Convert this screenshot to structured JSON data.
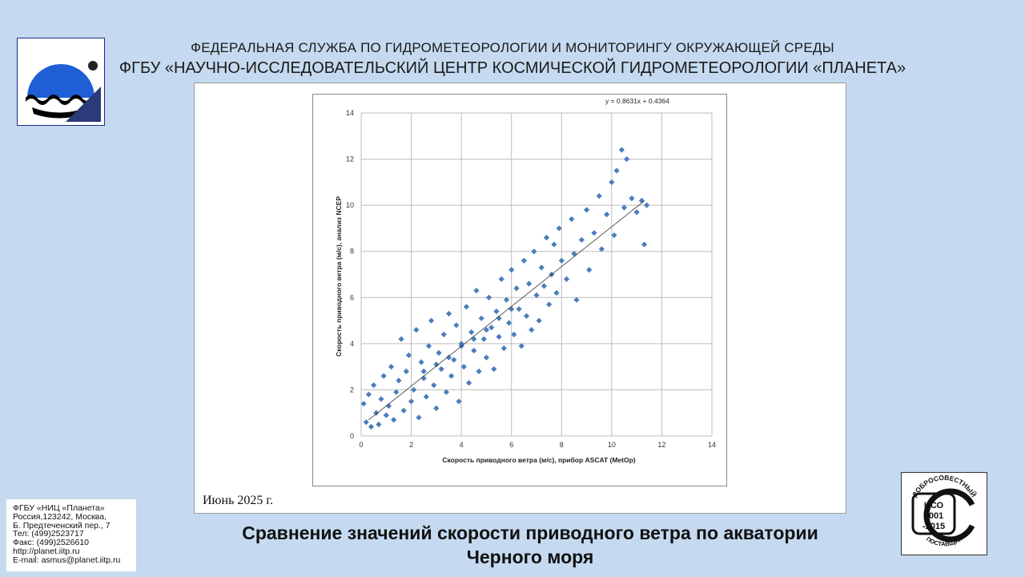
{
  "header": {
    "line1": "ФЕДЕРАЛЬНАЯ СЛУЖБА ПО ГИДРОМЕТЕОРОЛОГИИ И МОНИТОРИНГУ ОКРУЖАЮЩЕЙ СРЕДЫ",
    "line2": "ФГБУ «НАУЧНО-ИССЛЕДОВАТЕЛЬСКИЙ ЦЕНТР КОСМИЧЕСКОЙ ГИДРОМЕТЕОРОЛОГИИ «ПЛАНЕТА»"
  },
  "date": "Июнь  2025 г.",
  "contact": {
    "lines": [
      "ФГБУ «НИЦ «Планета»",
      "Россия,123242, Москва,",
      "Б. Предтеченский пер., 7",
      "Тел:   (499)2523717",
      "Факс:  (499)2526610",
      "http://planet.iitp.ru",
      "E-mail: asmus@planet.iitp.ru"
    ]
  },
  "title": {
    "line1": "Сравнение значений скорости приводного ветра по акватории",
    "line2": "Черного моря"
  },
  "iso_badge": {
    "top_text": "ДОБРОСОВЕСТНЫЙ",
    "bottom_text": "ПОСТАВЩИК",
    "line1": "ИСО",
    "line2": "9001",
    "line3": "-2015"
  },
  "colors": {
    "point": "#4a7ebb",
    "background": "#c5daf0",
    "logo_blue": "#1f5fd6"
  },
  "chart_data": {
    "type": "scatter",
    "xlabel": "Скорость приводного ветра (м/с), прибор ASCAT (MetOp)",
    "ylabel": "Скорость приводного ветра (м/с), анализ NCEP",
    "xlim": [
      0,
      14
    ],
    "ylim": [
      0,
      14
    ],
    "x_ticks": [
      0,
      2,
      4,
      6,
      8,
      10,
      12,
      14
    ],
    "y_ticks": [
      0,
      2,
      4,
      6,
      8,
      10,
      12,
      14
    ],
    "grid": true,
    "trendline": {
      "label": "y = 0.8631x + 0.4364",
      "slope": 0.8631,
      "intercept": 0.4364
    },
    "points": [
      [
        0.1,
        1.4
      ],
      [
        0.2,
        0.6
      ],
      [
        0.3,
        1.8
      ],
      [
        0.4,
        0.4
      ],
      [
        0.5,
        2.2
      ],
      [
        0.6,
        1.0
      ],
      [
        0.7,
        0.5
      ],
      [
        0.8,
        1.6
      ],
      [
        0.9,
        2.6
      ],
      [
        1.0,
        0.9
      ],
      [
        1.1,
        1.3
      ],
      [
        1.2,
        3.0
      ],
      [
        1.3,
        0.7
      ],
      [
        1.4,
        1.9
      ],
      [
        1.5,
        2.4
      ],
      [
        1.6,
        4.2
      ],
      [
        1.7,
        1.1
      ],
      [
        1.8,
        2.8
      ],
      [
        1.9,
        3.5
      ],
      [
        2.0,
        1.5
      ],
      [
        2.1,
        2.0
      ],
      [
        2.2,
        4.6
      ],
      [
        2.3,
        0.8
      ],
      [
        2.4,
        3.2
      ],
      [
        2.5,
        2.5
      ],
      [
        2.6,
        1.7
      ],
      [
        2.7,
        3.9
      ],
      [
        2.8,
        5.0
      ],
      [
        2.9,
        2.2
      ],
      [
        3.0,
        1.2
      ],
      [
        3.1,
        3.6
      ],
      [
        3.2,
        2.9
      ],
      [
        3.3,
        4.4
      ],
      [
        3.4,
        1.9
      ],
      [
        3.5,
        5.3
      ],
      [
        3.6,
        2.6
      ],
      [
        3.7,
        3.3
      ],
      [
        3.8,
        4.8
      ],
      [
        3.9,
        1.5
      ],
      [
        4.0,
        4.0
      ],
      [
        4.1,
        3.0
      ],
      [
        4.2,
        5.6
      ],
      [
        4.3,
        2.3
      ],
      [
        4.4,
        4.5
      ],
      [
        4.5,
        3.7
      ],
      [
        4.6,
        6.3
      ],
      [
        4.7,
        2.8
      ],
      [
        4.8,
        5.1
      ],
      [
        4.9,
        4.2
      ],
      [
        5.0,
        3.4
      ],
      [
        5.1,
        6.0
      ],
      [
        5.2,
        4.7
      ],
      [
        5.3,
        2.9
      ],
      [
        5.4,
        5.4
      ],
      [
        5.5,
        4.3
      ],
      [
        5.6,
        6.8
      ],
      [
        5.7,
        3.8
      ],
      [
        5.8,
        5.9
      ],
      [
        5.9,
        4.9
      ],
      [
        6.0,
        7.2
      ],
      [
        6.1,
        4.4
      ],
      [
        6.2,
        6.4
      ],
      [
        6.3,
        5.5
      ],
      [
        6.4,
        3.9
      ],
      [
        6.5,
        7.6
      ],
      [
        6.6,
        5.2
      ],
      [
        6.7,
        6.6
      ],
      [
        6.8,
        4.6
      ],
      [
        6.9,
        8.0
      ],
      [
        7.0,
        6.1
      ],
      [
        7.1,
        5.0
      ],
      [
        7.2,
        7.3
      ],
      [
        7.3,
        6.5
      ],
      [
        7.4,
        8.6
      ],
      [
        7.5,
        5.7
      ],
      [
        7.6,
        7.0
      ],
      [
        7.7,
        8.3
      ],
      [
        7.8,
        6.2
      ],
      [
        7.9,
        9.0
      ],
      [
        8.0,
        7.6
      ],
      [
        8.2,
        6.8
      ],
      [
        8.4,
        9.4
      ],
      [
        8.5,
        7.9
      ],
      [
        8.6,
        5.9
      ],
      [
        8.8,
        8.5
      ],
      [
        9.0,
        9.8
      ],
      [
        9.1,
        7.2
      ],
      [
        9.3,
        8.8
      ],
      [
        9.5,
        10.4
      ],
      [
        9.6,
        8.1
      ],
      [
        9.8,
        9.6
      ],
      [
        10.0,
        11.0
      ],
      [
        10.1,
        8.7
      ],
      [
        10.2,
        11.5
      ],
      [
        10.4,
        12.4
      ],
      [
        10.5,
        9.9
      ],
      [
        10.6,
        12.0
      ],
      [
        10.8,
        10.3
      ],
      [
        11.0,
        9.7
      ],
      [
        11.2,
        10.2
      ],
      [
        11.3,
        8.3
      ],
      [
        11.4,
        10.0
      ],
      [
        3.0,
        3.1
      ],
      [
        3.5,
        3.4
      ],
      [
        4.0,
        3.9
      ],
      [
        4.5,
        4.2
      ],
      [
        5.0,
        4.6
      ],
      [
        5.5,
        5.1
      ],
      [
        6.0,
        5.5
      ],
      [
        2.5,
        2.8
      ]
    ]
  }
}
